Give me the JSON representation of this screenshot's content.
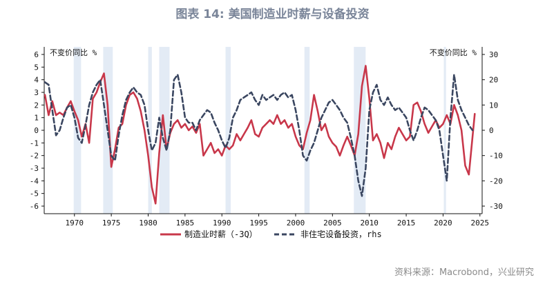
{
  "title": "图表 14: 美国制造业时薪与设备投资",
  "source": "资料来源：Macrobond，兴业研究",
  "chart_data": {
    "type": "line",
    "left_unit": "不变价同比 %",
    "right_unit": "不变价同比 %",
    "left_ylim": [
      -6.6,
      6.6
    ],
    "right_ylim": [
      -33,
      33
    ],
    "left_ticks": [
      "6",
      "5",
      "4",
      "3",
      "2",
      "1",
      "0",
      "-1",
      "-2",
      "-3",
      "-4",
      "-5",
      "-6"
    ],
    "right_ticks": [
      "30",
      "20",
      "10",
      "0",
      "-10",
      "-20",
      "-30"
    ],
    "xlim": [
      1965.9,
      2025.3
    ],
    "x_ticks": [
      "1970",
      "1975",
      "1980",
      "1985",
      "1990",
      "1995",
      "2000",
      "2005",
      "2010",
      "2015",
      "2020",
      "2025"
    ],
    "grid": false,
    "legend_position": "bottom",
    "recessions": [
      [
        1969.9,
        1970.9
      ],
      [
        1973.9,
        1975.2
      ],
      [
        1980.0,
        1980.5
      ],
      [
        1981.5,
        1982.9
      ],
      [
        1990.5,
        1991.2
      ],
      [
        2001.2,
        2001.9
      ],
      [
        2007.9,
        2009.5
      ],
      [
        2020.1,
        2020.4
      ]
    ],
    "series": [
      {
        "name": "制造业时薪（-3Q）",
        "color": "#c8374a",
        "axis": "left",
        "style": "solid",
        "x": [
          1966.0,
          1966.5,
          1967.0,
          1967.5,
          1968.0,
          1968.5,
          1969.0,
          1969.5,
          1970.0,
          1970.5,
          1971.0,
          1971.5,
          1972.0,
          1972.5,
          1973.0,
          1973.5,
          1974.0,
          1974.5,
          1975.0,
          1975.5,
          1976.0,
          1976.5,
          1977.0,
          1977.5,
          1978.0,
          1978.5,
          1979.0,
          1979.5,
          1980.0,
          1980.5,
          1981.0,
          1981.5,
          1982.0,
          1982.5,
          1983.0,
          1983.5,
          1984.0,
          1984.5,
          1985.0,
          1985.5,
          1986.0,
          1986.5,
          1987.0,
          1987.5,
          1988.0,
          1988.5,
          1989.0,
          1989.5,
          1990.0,
          1990.5,
          1991.0,
          1991.5,
          1992.0,
          1992.5,
          1993.0,
          1993.5,
          1994.0,
          1994.5,
          1995.0,
          1995.5,
          1996.0,
          1996.5,
          1997.0,
          1997.5,
          1998.0,
          1998.5,
          1999.0,
          1999.5,
          2000.0,
          2000.5,
          2001.0,
          2001.5,
          2002.0,
          2002.5,
          2003.0,
          2003.5,
          2004.0,
          2004.5,
          2005.0,
          2005.5,
          2006.0,
          2006.5,
          2007.0,
          2007.5,
          2008.0,
          2008.5,
          2009.0,
          2009.5,
          2010.0,
          2010.5,
          2011.0,
          2011.5,
          2012.0,
          2012.5,
          2013.0,
          2013.5,
          2014.0,
          2014.5,
          2015.0,
          2015.5,
          2016.0,
          2016.5,
          2017.0,
          2017.5,
          2018.0,
          2018.5,
          2019.0,
          2019.5,
          2020.0,
          2020.5,
          2021.0,
          2021.5,
          2022.0,
          2022.5,
          2023.0,
          2023.5,
          2024.0,
          2024.3
        ],
        "y": [
          2.8,
          1.2,
          2.3,
          1.2,
          1.4,
          1.2,
          1.8,
          2.3,
          1.5,
          0.8,
          -0.5,
          0.5,
          -1.0,
          2.5,
          3.0,
          3.8,
          4.5,
          2.0,
          -2.9,
          -1.5,
          0.2,
          0.5,
          2.0,
          2.8,
          3.0,
          2.5,
          1.5,
          0.0,
          -2.0,
          -4.5,
          -5.8,
          -1.8,
          1.2,
          -1.5,
          -0.2,
          0.5,
          0.8,
          0.2,
          0.5,
          0.0,
          0.3,
          -0.2,
          0.5,
          -2.0,
          -1.5,
          -1.0,
          -1.8,
          -1.5,
          -2.0,
          -1.2,
          -1.5,
          -1.2,
          -0.3,
          -0.8,
          -0.3,
          0.2,
          0.8,
          -0.3,
          -0.5,
          0.2,
          0.5,
          0.8,
          0.5,
          1.2,
          0.5,
          0.8,
          0.2,
          0.5,
          -0.5,
          -1.2,
          -1.5,
          -0.2,
          0.8,
          2.8,
          1.5,
          0.0,
          0.5,
          -0.5,
          -1.0,
          -1.3,
          -2.0,
          -1.2,
          -0.5,
          -1.2,
          -2.0,
          -0.3,
          3.5,
          5.1,
          2.5,
          -0.8,
          -0.3,
          -1.0,
          -2.2,
          -1.0,
          -1.5,
          -0.5,
          0.2,
          -0.3,
          -0.8,
          -0.5,
          2.0,
          2.2,
          1.5,
          0.5,
          -0.2,
          0.3,
          0.8,
          0.2,
          0.5,
          1.2,
          0.5,
          2.0,
          1.2,
          0.0,
          -2.8,
          -3.5,
          -0.5,
          1.3
        ]
      },
      {
        "name": "非住宅设备投资，rhs",
        "color": "#3a4660",
        "axis": "right",
        "style": "dashed",
        "x": [
          1966.0,
          1966.5,
          1967.0,
          1967.5,
          1968.0,
          1968.5,
          1969.0,
          1969.5,
          1970.0,
          1970.5,
          1971.0,
          1971.5,
          1972.0,
          1972.5,
          1973.0,
          1973.5,
          1974.0,
          1974.5,
          1975.0,
          1975.5,
          1976.0,
          1976.5,
          1977.0,
          1977.5,
          1978.0,
          1978.5,
          1979.0,
          1979.5,
          1980.0,
          1980.5,
          1981.0,
          1981.5,
          1982.0,
          1982.5,
          1983.0,
          1983.5,
          1984.0,
          1984.5,
          1985.0,
          1985.5,
          1986.0,
          1986.5,
          1987.0,
          1987.5,
          1988.0,
          1988.5,
          1989.0,
          1989.5,
          1990.0,
          1990.5,
          1991.0,
          1991.5,
          1992.0,
          1992.5,
          1993.0,
          1993.5,
          1994.0,
          1994.5,
          1995.0,
          1995.5,
          1996.0,
          1996.5,
          1997.0,
          1997.5,
          1998.0,
          1998.5,
          1999.0,
          1999.5,
          2000.0,
          2000.5,
          2001.0,
          2001.5,
          2002.0,
          2002.5,
          2003.0,
          2003.5,
          2004.0,
          2004.5,
          2005.0,
          2005.5,
          2006.0,
          2006.5,
          2007.0,
          2007.5,
          2008.0,
          2008.5,
          2009.0,
          2009.5,
          2010.0,
          2010.5,
          2011.0,
          2011.5,
          2012.0,
          2012.5,
          2013.0,
          2013.5,
          2014.0,
          2014.5,
          2015.0,
          2015.5,
          2016.0,
          2016.5,
          2017.0,
          2017.5,
          2018.0,
          2018.5,
          2019.0,
          2019.5,
          2020.0,
          2020.5,
          2021.0,
          2021.5,
          2022.0,
          2022.5,
          2023.0,
          2023.5,
          2024.0
        ],
        "y": [
          19,
          18,
          8,
          -2,
          0,
          5,
          9,
          10,
          5,
          -3,
          -5,
          2,
          10,
          15,
          18,
          20,
          10,
          0,
          -10,
          -12,
          -2,
          6,
          12,
          15,
          17,
          15,
          14,
          10,
          0,
          -8,
          -5,
          5,
          -3,
          -8,
          0,
          20,
          22,
          15,
          5,
          3,
          3,
          0,
          4,
          6,
          8,
          7,
          3,
          0,
          -4,
          -7,
          -3,
          5,
          8,
          12,
          13,
          14,
          15,
          12,
          10,
          14,
          12,
          13,
          14,
          12,
          14,
          15,
          13,
          14,
          8,
          0,
          -10,
          -12,
          -8,
          -5,
          0,
          5,
          8,
          11,
          12,
          10,
          8,
          5,
          3,
          -3,
          -10,
          -20,
          -26,
          -15,
          8,
          15,
          18,
          12,
          10,
          13,
          10,
          8,
          9,
          7,
          5,
          0,
          -4,
          0,
          5,
          9,
          8,
          6,
          4,
          0,
          -10,
          -20,
          5,
          22,
          12,
          8,
          5,
          2,
          0
        ]
      }
    ]
  }
}
